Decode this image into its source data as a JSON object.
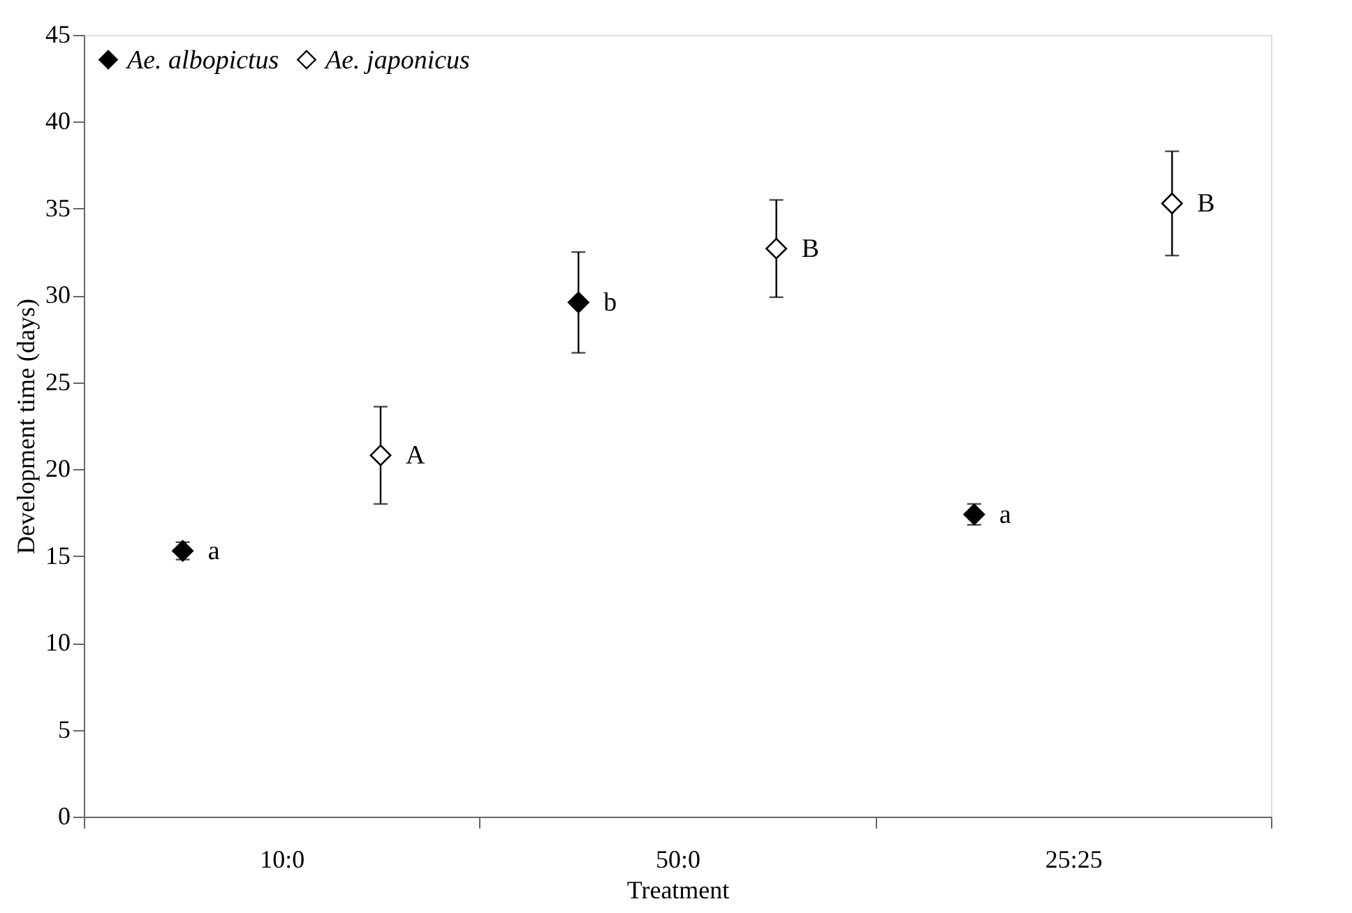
{
  "chart_data": {
    "type": "scatter",
    "xlabel": "Treatment",
    "ylabel": "Development time (days)",
    "categories": [
      "10:0",
      "50:0",
      "25:25"
    ],
    "series": [
      {
        "name": "Ae. albopictus",
        "color": "#000000",
        "values": [
          15.3,
          29.6,
          17.4
        ],
        "errors": [
          0.5,
          2.9,
          0.6
        ]
      },
      {
        "name": "Ae. japonicus",
        "color": "#ffffff",
        "values": [
          20.8,
          32.7,
          35.3
        ],
        "errors": [
          2.8,
          2.8,
          3.0
        ]
      }
    ],
    "ylim": [
      0,
      45
    ],
    "yticks": [
      0,
      5,
      10,
      15,
      20,
      25,
      30,
      35,
      40,
      45
    ],
    "marker": "diamond",
    "legend": "top left",
    "grid": false,
    "annotations": [
      "a",
      "A",
      "b",
      "B",
      "a",
      "B"
    ]
  }
}
